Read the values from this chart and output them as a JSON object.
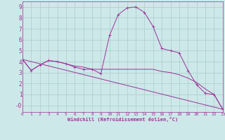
{
  "xlabel": "Windchill (Refroidissement éolien,°C)",
  "bg_color": "#cde8e8",
  "line_color": "#993399",
  "grid_color": "#aacccc",
  "xlim": [
    0,
    23
  ],
  "ylim": [
    -0.6,
    9.5
  ],
  "xticks": [
    0,
    1,
    2,
    3,
    4,
    5,
    6,
    7,
    8,
    9,
    10,
    11,
    12,
    13,
    14,
    15,
    16,
    17,
    18,
    19,
    20,
    21,
    22,
    23
  ],
  "yticks": [
    0,
    1,
    2,
    3,
    4,
    5,
    6,
    7,
    8,
    9
  ],
  "ytick_labels": [
    "-0",
    "1",
    "2",
    "3",
    "4",
    "5",
    "6",
    "7",
    "8",
    "9"
  ],
  "lines": [
    {
      "x": [
        0,
        1,
        2,
        3,
        4,
        5,
        6,
        7,
        8,
        9,
        10,
        11,
        12,
        13,
        14,
        15,
        16,
        17,
        18,
        19,
        20,
        21,
        22,
        23
      ],
      "y": [
        4.2,
        3.2,
        3.7,
        4.1,
        4.0,
        3.8,
        3.5,
        3.3,
        3.3,
        2.9,
        6.4,
        8.3,
        8.9,
        9.0,
        8.5,
        7.2,
        5.2,
        5.0,
        4.8,
        3.2,
        1.9,
        1.1,
        1.0,
        -0.35
      ],
      "marker": true
    },
    {
      "x": [
        0,
        1,
        2,
        3,
        4,
        5,
        6,
        7,
        8,
        9,
        10,
        11,
        12,
        13,
        14,
        15,
        16,
        17,
        18,
        19,
        20,
        21,
        22,
        23
      ],
      "y": [
        4.2,
        3.2,
        3.7,
        4.1,
        4.0,
        3.8,
        3.6,
        3.5,
        3.3,
        3.3,
        3.3,
        3.3,
        3.3,
        3.3,
        3.3,
        3.3,
        3.1,
        3.0,
        2.8,
        2.5,
        2.1,
        1.5,
        1.0,
        -0.35
      ],
      "marker": false
    },
    {
      "x": [
        0,
        23
      ],
      "y": [
        4.2,
        -0.35
      ],
      "marker": false
    }
  ]
}
